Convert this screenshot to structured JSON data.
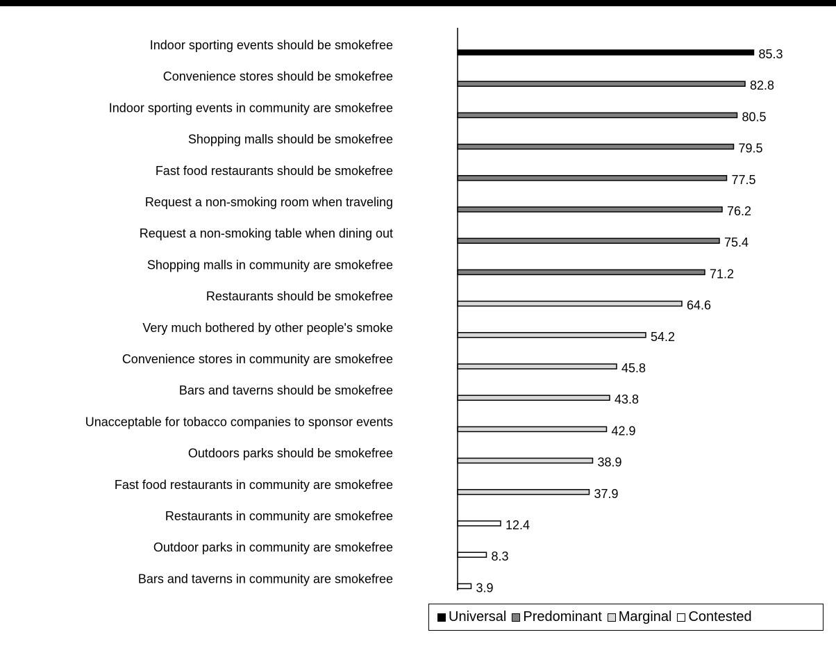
{
  "chart_data": {
    "type": "bar",
    "orientation": "horizontal",
    "categories": [
      "Indoor sporting events should be smokefree",
      "Convenience stores should be smokefree",
      "Indoor sporting events in community are smokefree",
      "Shopping malls should be smokefree",
      "Fast food restaurants should be smokefree",
      "Request a non-smoking room when traveling",
      "Request a non-smoking table when dining out",
      "Shopping malls in community are smokefree",
      "Restaurants should be smokefree",
      "Very much bothered by other people's smoke",
      "Convenience stores in community are smokefree",
      "Bars and taverns should be smokefree",
      "Unacceptable for tobacco companies to sponsor events",
      "Outdoors parks should be smokefree",
      "Fast food restaurants in community are smokefree",
      "Restaurants in community are smokefree",
      "Outdoor parks in community are smokefree",
      "Bars and taverns in community are smokefree"
    ],
    "values": [
      85.3,
      82.8,
      80.5,
      79.5,
      77.5,
      76.2,
      75.4,
      71.2,
      64.6,
      54.2,
      45.8,
      43.8,
      42.9,
      38.9,
      37.9,
      12.4,
      8.3,
      3.9
    ],
    "value_labels": [
      "85.3",
      "82.8",
      "80.5",
      "79.5",
      "77.5",
      "76.2",
      "75.4",
      "71.2",
      "64.6",
      "54.2",
      "45.8",
      "43.8",
      "42.9",
      "38.9",
      "37.9",
      "12.4",
      "8.3",
      "3.9"
    ],
    "groups": [
      "Universal",
      "Predominant",
      "Predominant",
      "Predominant",
      "Predominant",
      "Predominant",
      "Predominant",
      "Predominant",
      "Marginal",
      "Marginal",
      "Marginal",
      "Marginal",
      "Marginal",
      "Marginal",
      "Marginal",
      "Contested",
      "Contested",
      "Contested"
    ],
    "legend": [
      {
        "name": "Universal",
        "color": "#000000"
      },
      {
        "name": "Predominant",
        "color": "#808080"
      },
      {
        "name": "Marginal",
        "color": "#d9d9d9"
      },
      {
        "name": "Contested",
        "color": "#ffffff"
      }
    ],
    "xlim": [
      0,
      100
    ],
    "grid": false,
    "legend_position": "bottom-right",
    "title": "",
    "xlabel": "",
    "ylabel": ""
  }
}
